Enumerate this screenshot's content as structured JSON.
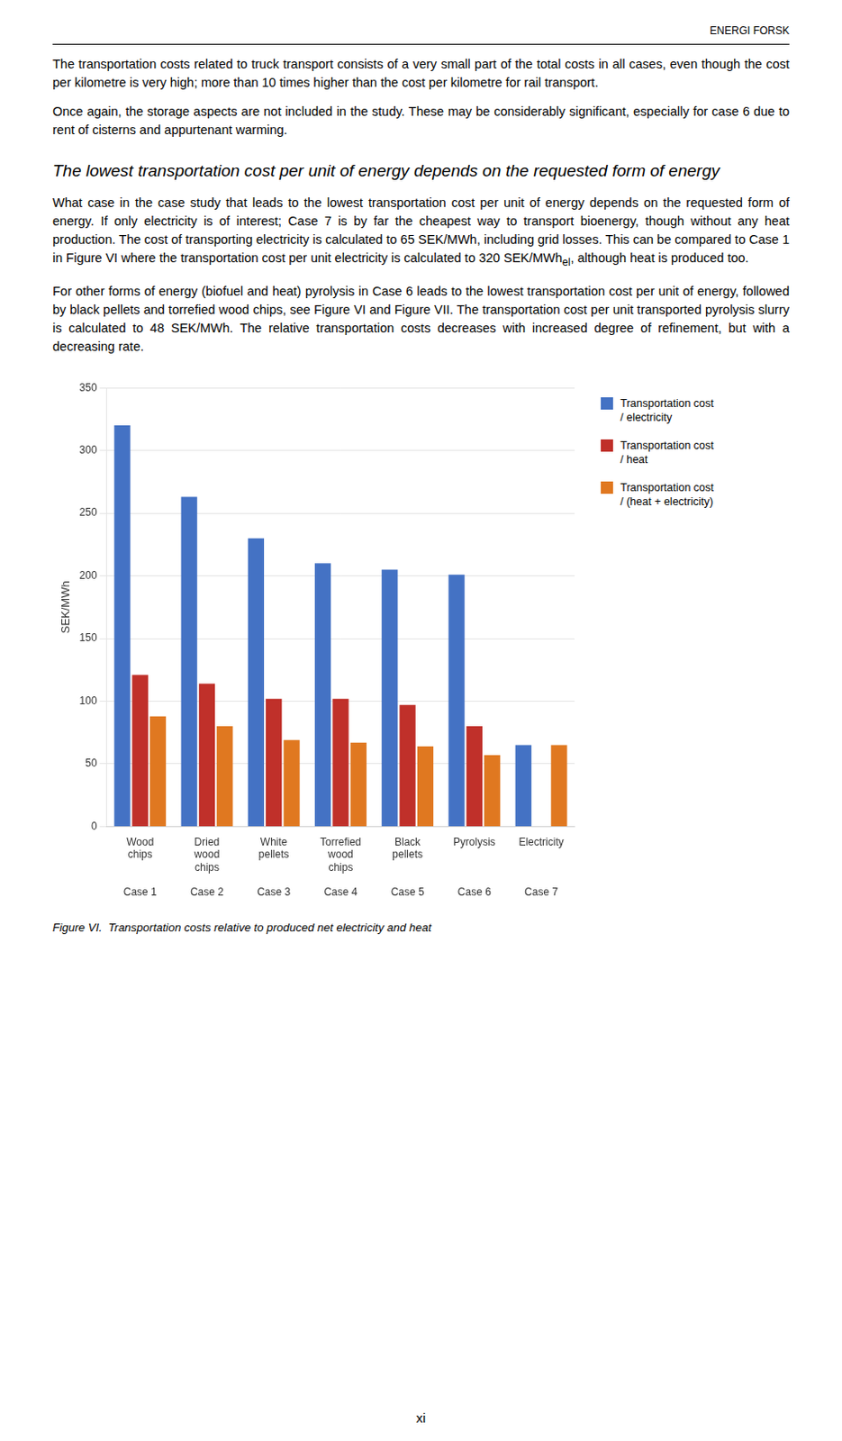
{
  "chart_data": {
    "type": "bar",
    "title": "Figure VI.  Transportation costs relative to produced net electricity and heat",
    "categories": [
      "Wood\nchips",
      "Dried\nwood\nchips",
      "White\npellets",
      "Torrefied\nwood\nchips",
      "Black\npellets",
      "Pyrolysis",
      "Electricity"
    ],
    "secondary_categories": [
      "Case 1",
      "Case 2",
      "Case 3",
      "Case 4",
      "Case 5",
      "Case 6",
      "Case 7"
    ],
    "series": [
      {
        "name": "Transportation cost\n/ electricity",
        "color": "#4472C4",
        "values": [
          320,
          263,
          230,
          210,
          205,
          201,
          65
        ]
      },
      {
        "name": "Transportation cost\n/ heat",
        "color": "#C0302A",
        "values": [
          121,
          114,
          102,
          102,
          97,
          80,
          0
        ]
      },
      {
        "name": "Transportation cost\n/ (heat + electricity)",
        "color": "#E07820",
        "values": [
          88,
          80,
          69,
          67,
          64,
          57,
          65
        ]
      }
    ],
    "ylabel": "SEK/MWh",
    "ylim": [
      0,
      350
    ],
    "yticks": [
      0,
      50,
      100,
      150,
      200,
      250,
      300,
      350
    ],
    "grid": true,
    "legend": "right"
  },
  "header": "ENERGI FORSK",
  "paragraphs_before_heading": [
    "The transportation costs related to truck transport consists of a very small part of the total costs in all cases, even though the cost per kilometre is very high; more than 10 times higher than the cost per kilometre for rail transport.",
    "Once again, the storage aspects are not included in the study. These may be considerably significant, especially for case 6 due to rent of cisterns and appurtenant warming."
  ],
  "heading": "The lowest transportation cost per unit of energy depends on the requested form of energy",
  "paragraphs_after_heading": [
    {
      "text": "What case in the case study that leads to the lowest transportation cost per unit of energy depends on the requested form of energy. If only electricity is of interest; Case 7 is by far the cheapest way to transport bioenergy, though without any heat production. The cost of transporting electricity is calculated to 65 SEK/MWh, including grid losses. This can be compared to Case 1 in Figure VI where the transportation cost per unit electricity is calculated to 320 SEK/MWh",
      "subscript": "el",
      "text_after": ", although heat is produced too."
    },
    "For other forms of energy (biofuel and heat) pyrolysis in Case 6 leads to the lowest transportation cost per unit of energy, followed by black pellets and torrefied wood chips, see Figure VI and Figure VII. The transportation cost per unit transported pyrolysis slurry is calculated to 48 SEK/MWh. The relative transportation costs decreases with increased degree of refinement, but with a decreasing rate."
  ],
  "page_number": "xi"
}
